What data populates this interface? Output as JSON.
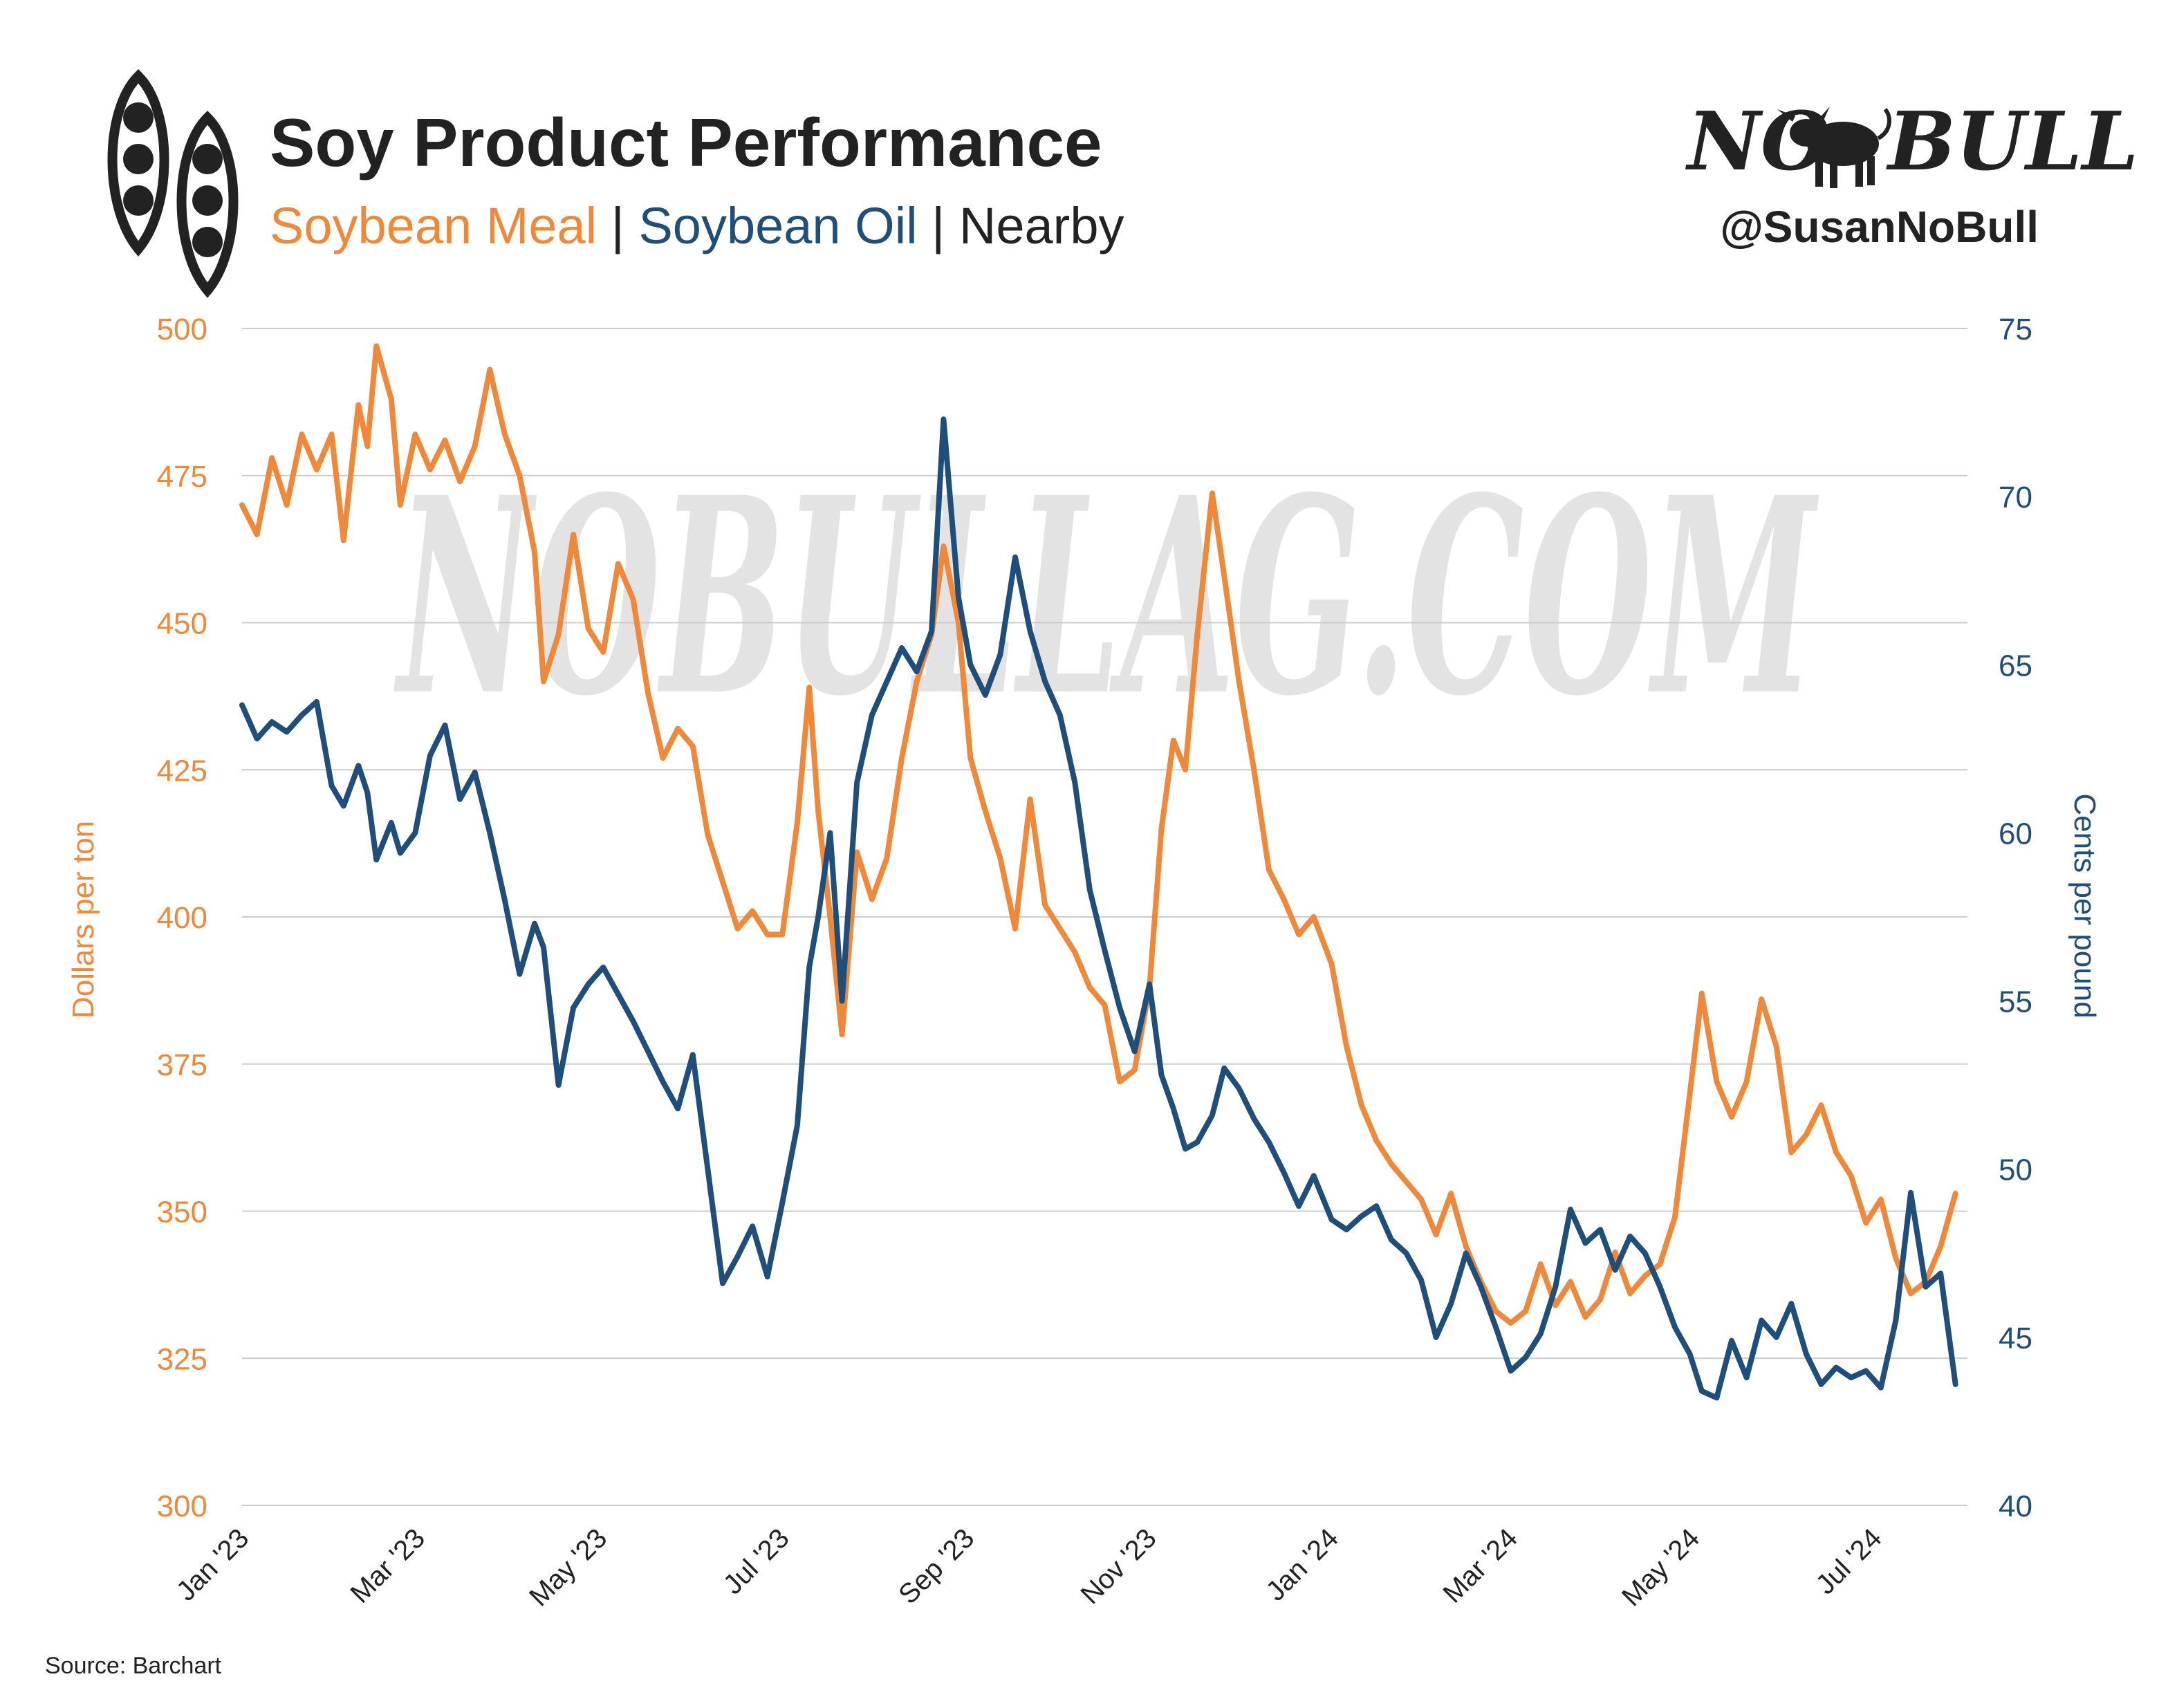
{
  "header": {
    "title": "Soy Product Performance",
    "subtitle_meal": "Soybean Meal",
    "subtitle_sep1": " | ",
    "subtitle_oil": "Soybean Oil",
    "subtitle_sep2": " | ",
    "subtitle_nearby": "Nearby"
  },
  "brand": {
    "logo_left": "NO",
    "logo_right": "BULL",
    "handle": "@SusanNoBull",
    "watermark": "NOBULLAG.COM"
  },
  "footer": {
    "source": "Source: Barchart"
  },
  "colors": {
    "meal": "#F0883A",
    "oil": "#1F4E7A",
    "grid": "#CCCCCC",
    "text": "#222222",
    "watermark": "#D9D9D9"
  },
  "icons": {
    "logo": "soybean-pod-icon",
    "bull": "bull-icon"
  },
  "chart_data": {
    "type": "line",
    "title": "Soy Product Performance",
    "x_tick_labels": [
      "Jan '23",
      "Mar '23",
      "May '23",
      "Jul '23",
      "Sep '23",
      "Nov '23",
      "Jan '24",
      "Mar '24",
      "May '24",
      "Jul '24"
    ],
    "x_ticks": [
      "2023-01-01",
      "2023-03-01",
      "2023-05-01",
      "2023-07-01",
      "2023-09-01",
      "2023-11-01",
      "2024-01-01",
      "2024-03-01",
      "2024-05-01",
      "2024-07-01"
    ],
    "x_range": [
      "2023-01-01",
      "2024-08-01"
    ],
    "y_left": {
      "label": "Dollars per ton",
      "ylim": [
        300,
        500
      ],
      "ticks": [
        300,
        325,
        350,
        375,
        400,
        425,
        450,
        475,
        500
      ]
    },
    "y_right": {
      "label": "Cents per pound",
      "ylim": [
        40,
        75
      ],
      "ticks": [
        40,
        45,
        50,
        55,
        60,
        65,
        70,
        75
      ]
    },
    "grid": true,
    "series": [
      {
        "name": "Soybean Meal",
        "axis": "left",
        "points": [
          [
            "2023-01-01",
            470
          ],
          [
            "2023-01-06",
            465
          ],
          [
            "2023-01-11",
            478
          ],
          [
            "2023-01-16",
            470
          ],
          [
            "2023-01-21",
            482
          ],
          [
            "2023-01-26",
            476
          ],
          [
            "2023-01-31",
            482
          ],
          [
            "2023-02-04",
            464
          ],
          [
            "2023-02-09",
            487
          ],
          [
            "2023-02-12",
            480
          ],
          [
            "2023-02-15",
            497
          ],
          [
            "2023-02-20",
            488
          ],
          [
            "2023-02-23",
            470
          ],
          [
            "2023-02-28",
            482
          ],
          [
            "2023-03-05",
            476
          ],
          [
            "2023-03-10",
            481
          ],
          [
            "2023-03-15",
            474
          ],
          [
            "2023-03-20",
            480
          ],
          [
            "2023-03-25",
            493
          ],
          [
            "2023-03-30",
            482
          ],
          [
            "2023-04-04",
            475
          ],
          [
            "2023-04-09",
            462
          ],
          [
            "2023-04-12",
            440
          ],
          [
            "2023-04-17",
            448
          ],
          [
            "2023-04-22",
            465
          ],
          [
            "2023-04-27",
            449
          ],
          [
            "2023-05-02",
            445
          ],
          [
            "2023-05-07",
            460
          ],
          [
            "2023-05-12",
            454
          ],
          [
            "2023-05-17",
            438
          ],
          [
            "2023-05-22",
            427
          ],
          [
            "2023-05-27",
            432
          ],
          [
            "2023-06-01",
            429
          ],
          [
            "2023-06-06",
            414
          ],
          [
            "2023-06-11",
            406
          ],
          [
            "2023-06-16",
            398
          ],
          [
            "2023-06-21",
            401
          ],
          [
            "2023-06-26",
            397
          ],
          [
            "2023-07-01",
            397
          ],
          [
            "2023-07-06",
            416
          ],
          [
            "2023-07-10",
            439
          ],
          [
            "2023-07-13",
            418
          ],
          [
            "2023-07-17",
            400
          ],
          [
            "2023-07-21",
            380
          ],
          [
            "2023-07-26",
            411
          ],
          [
            "2023-07-31",
            403
          ],
          [
            "2023-08-05",
            410
          ],
          [
            "2023-08-10",
            427
          ],
          [
            "2023-08-15",
            440
          ],
          [
            "2023-08-20",
            448
          ],
          [
            "2023-08-24",
            463
          ],
          [
            "2023-08-29",
            450
          ],
          [
            "2023-09-02",
            427
          ],
          [
            "2023-09-07",
            418
          ],
          [
            "2023-09-12",
            410
          ],
          [
            "2023-09-17",
            398
          ],
          [
            "2023-09-22",
            420
          ],
          [
            "2023-09-27",
            402
          ],
          [
            "2023-10-02",
            398
          ],
          [
            "2023-10-07",
            394
          ],
          [
            "2023-10-12",
            388
          ],
          [
            "2023-10-17",
            385
          ],
          [
            "2023-10-22",
            372
          ],
          [
            "2023-10-27",
            374
          ],
          [
            "2023-11-01",
            388
          ],
          [
            "2023-11-05",
            415
          ],
          [
            "2023-11-09",
            430
          ],
          [
            "2023-11-13",
            425
          ],
          [
            "2023-11-17",
            448
          ],
          [
            "2023-11-22",
            472
          ],
          [
            "2023-11-26",
            458
          ],
          [
            "2023-12-01",
            440
          ],
          [
            "2023-12-06",
            425
          ],
          [
            "2023-12-11",
            408
          ],
          [
            "2023-12-16",
            403
          ],
          [
            "2023-12-21",
            397
          ],
          [
            "2023-12-26",
            400
          ],
          [
            "2024-01-01",
            392
          ],
          [
            "2024-01-06",
            378
          ],
          [
            "2024-01-11",
            368
          ],
          [
            "2024-01-16",
            362
          ],
          [
            "2024-01-21",
            358
          ],
          [
            "2024-01-26",
            355
          ],
          [
            "2024-01-31",
            352
          ],
          [
            "2024-02-05",
            346
          ],
          [
            "2024-02-10",
            353
          ],
          [
            "2024-02-15",
            344
          ],
          [
            "2024-02-20",
            338
          ],
          [
            "2024-02-25",
            333
          ],
          [
            "2024-03-01",
            331
          ],
          [
            "2024-03-06",
            333
          ],
          [
            "2024-03-11",
            341
          ],
          [
            "2024-03-16",
            334
          ],
          [
            "2024-03-21",
            338
          ],
          [
            "2024-03-26",
            332
          ],
          [
            "2024-03-31",
            335
          ],
          [
            "2024-04-05",
            343
          ],
          [
            "2024-04-10",
            336
          ],
          [
            "2024-04-15",
            339
          ],
          [
            "2024-04-20",
            341
          ],
          [
            "2024-04-25",
            349
          ],
          [
            "2024-04-30",
            370
          ],
          [
            "2024-05-04",
            387
          ],
          [
            "2024-05-09",
            372
          ],
          [
            "2024-05-14",
            366
          ],
          [
            "2024-05-19",
            372
          ],
          [
            "2024-05-24",
            386
          ],
          [
            "2024-05-29",
            378
          ],
          [
            "2024-06-03",
            360
          ],
          [
            "2024-06-08",
            363
          ],
          [
            "2024-06-13",
            368
          ],
          [
            "2024-06-18",
            360
          ],
          [
            "2024-06-23",
            356
          ],
          [
            "2024-06-28",
            348
          ],
          [
            "2024-07-03",
            352
          ],
          [
            "2024-07-08",
            342
          ],
          [
            "2024-07-13",
            336
          ],
          [
            "2024-07-18",
            338
          ],
          [
            "2024-07-23",
            344
          ],
          [
            "2024-07-28",
            353
          ]
        ]
      },
      {
        "name": "Soybean Oil",
        "axis": "right",
        "points": [
          [
            "2023-01-01",
            63.8
          ],
          [
            "2023-01-06",
            62.8
          ],
          [
            "2023-01-11",
            63.3
          ],
          [
            "2023-01-16",
            63.0
          ],
          [
            "2023-01-21",
            63.5
          ],
          [
            "2023-01-26",
            63.9
          ],
          [
            "2023-01-31",
            61.4
          ],
          [
            "2023-02-04",
            60.8
          ],
          [
            "2023-02-09",
            62.0
          ],
          [
            "2023-02-12",
            61.2
          ],
          [
            "2023-02-15",
            59.2
          ],
          [
            "2023-02-20",
            60.3
          ],
          [
            "2023-02-23",
            59.4
          ],
          [
            "2023-02-28",
            60.0
          ],
          [
            "2023-03-05",
            62.3
          ],
          [
            "2023-03-10",
            63.2
          ],
          [
            "2023-03-15",
            61.0
          ],
          [
            "2023-03-20",
            61.8
          ],
          [
            "2023-03-25",
            60.0
          ],
          [
            "2023-03-30",
            58.0
          ],
          [
            "2023-04-04",
            55.8
          ],
          [
            "2023-04-09",
            57.3
          ],
          [
            "2023-04-12",
            56.6
          ],
          [
            "2023-04-17",
            52.5
          ],
          [
            "2023-04-22",
            54.8
          ],
          [
            "2023-04-27",
            55.5
          ],
          [
            "2023-05-02",
            56.0
          ],
          [
            "2023-05-07",
            55.2
          ],
          [
            "2023-05-12",
            54.4
          ],
          [
            "2023-05-17",
            53.5
          ],
          [
            "2023-05-22",
            52.6
          ],
          [
            "2023-05-27",
            51.8
          ],
          [
            "2023-06-01",
            53.4
          ],
          [
            "2023-06-06",
            50.0
          ],
          [
            "2023-06-11",
            46.6
          ],
          [
            "2023-06-16",
            47.4
          ],
          [
            "2023-06-21",
            48.3
          ],
          [
            "2023-06-26",
            46.8
          ],
          [
            "2023-07-01",
            49.0
          ],
          [
            "2023-07-06",
            51.3
          ],
          [
            "2023-07-10",
            56.0
          ],
          [
            "2023-07-13",
            57.5
          ],
          [
            "2023-07-17",
            60.0
          ],
          [
            "2023-07-21",
            55.0
          ],
          [
            "2023-07-26",
            61.5
          ],
          [
            "2023-07-31",
            63.5
          ],
          [
            "2023-08-05",
            64.5
          ],
          [
            "2023-08-10",
            65.5
          ],
          [
            "2023-08-15",
            64.8
          ],
          [
            "2023-08-20",
            66.0
          ],
          [
            "2023-08-24",
            72.3
          ],
          [
            "2023-08-29",
            67.0
          ],
          [
            "2023-09-02",
            65.0
          ],
          [
            "2023-09-07",
            64.1
          ],
          [
            "2023-09-12",
            65.3
          ],
          [
            "2023-09-17",
            68.2
          ],
          [
            "2023-09-22",
            66.0
          ],
          [
            "2023-09-27",
            64.5
          ],
          [
            "2023-10-02",
            63.5
          ],
          [
            "2023-10-07",
            61.5
          ],
          [
            "2023-10-12",
            58.3
          ],
          [
            "2023-10-17",
            56.5
          ],
          [
            "2023-10-22",
            54.8
          ],
          [
            "2023-10-27",
            53.5
          ],
          [
            "2023-11-01",
            55.5
          ],
          [
            "2023-11-05",
            52.8
          ],
          [
            "2023-11-09",
            51.8
          ],
          [
            "2023-11-13",
            50.6
          ],
          [
            "2023-11-17",
            50.8
          ],
          [
            "2023-11-22",
            51.6
          ],
          [
            "2023-11-26",
            53.0
          ],
          [
            "2023-12-01",
            52.4
          ],
          [
            "2023-12-06",
            51.5
          ],
          [
            "2023-12-11",
            50.8
          ],
          [
            "2023-12-16",
            49.9
          ],
          [
            "2023-12-21",
            48.9
          ],
          [
            "2023-12-26",
            49.8
          ],
          [
            "2024-01-01",
            48.5
          ],
          [
            "2024-01-06",
            48.2
          ],
          [
            "2024-01-11",
            48.6
          ],
          [
            "2024-01-16",
            48.9
          ],
          [
            "2024-01-21",
            47.9
          ],
          [
            "2024-01-26",
            47.5
          ],
          [
            "2024-01-31",
            46.7
          ],
          [
            "2024-02-05",
            45.0
          ],
          [
            "2024-02-10",
            46.0
          ],
          [
            "2024-02-15",
            47.5
          ],
          [
            "2024-02-20",
            46.5
          ],
          [
            "2024-02-25",
            45.3
          ],
          [
            "2024-03-01",
            44.0
          ],
          [
            "2024-03-06",
            44.4
          ],
          [
            "2024-03-11",
            45.1
          ],
          [
            "2024-03-16",
            46.5
          ],
          [
            "2024-03-21",
            48.8
          ],
          [
            "2024-03-26",
            47.8
          ],
          [
            "2024-03-31",
            48.2
          ],
          [
            "2024-04-05",
            47.0
          ],
          [
            "2024-04-10",
            48.0
          ],
          [
            "2024-04-15",
            47.5
          ],
          [
            "2024-04-20",
            46.5
          ],
          [
            "2024-04-25",
            45.3
          ],
          [
            "2024-04-30",
            44.5
          ],
          [
            "2024-05-04",
            43.4
          ],
          [
            "2024-05-09",
            43.2
          ],
          [
            "2024-05-14",
            44.9
          ],
          [
            "2024-05-19",
            43.8
          ],
          [
            "2024-05-24",
            45.5
          ],
          [
            "2024-05-29",
            45.0
          ],
          [
            "2024-06-03",
            46.0
          ],
          [
            "2024-06-08",
            44.5
          ],
          [
            "2024-06-13",
            43.6
          ],
          [
            "2024-06-18",
            44.1
          ],
          [
            "2024-06-23",
            43.8
          ],
          [
            "2024-06-28",
            44.0
          ],
          [
            "2024-07-03",
            43.5
          ],
          [
            "2024-07-08",
            45.5
          ],
          [
            "2024-07-13",
            49.3
          ],
          [
            "2024-07-18",
            46.5
          ],
          [
            "2024-07-23",
            46.9
          ],
          [
            "2024-07-28",
            43.6
          ]
        ]
      }
    ]
  }
}
